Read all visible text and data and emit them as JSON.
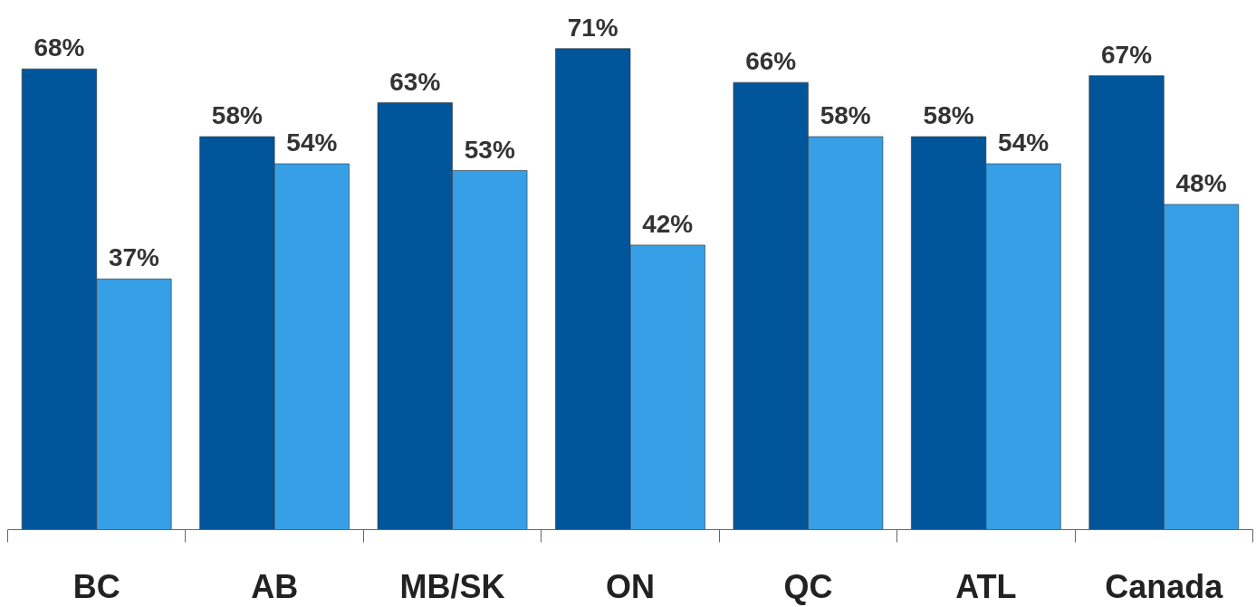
{
  "chart_data": {
    "type": "bar",
    "categories": [
      "BC",
      "AB",
      "MB/SK",
      "ON",
      "QC",
      "ATL",
      "Canada"
    ],
    "series": [
      {
        "color": "#00559b",
        "values": [
          68,
          58,
          63,
          71,
          66,
          58,
          67
        ],
        "value_labels": [
          "68%",
          "58%",
          "63%",
          "71%",
          "66%",
          "58%",
          "67%"
        ]
      },
      {
        "color": "#369fe6",
        "values": [
          37,
          54,
          53,
          42,
          58,
          54,
          48
        ],
        "value_labels": [
          "37%",
          "54%",
          "53%",
          "42%",
          "58%",
          "54%",
          "48%"
        ]
      }
    ],
    "tick_labels": "x"
  }
}
